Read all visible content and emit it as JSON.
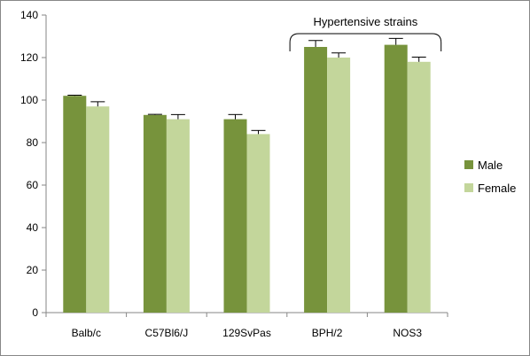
{
  "chart_data": {
    "type": "bar",
    "categories": [
      "Balb/c",
      "C57Bl6/J",
      "129SvPas",
      "BPH/2",
      "NOS3"
    ],
    "series": [
      {
        "name": "Male",
        "values": [
          102,
          93,
          91,
          125,
          126
        ],
        "errors": [
          0.3,
          0.3,
          2.2,
          3,
          3
        ],
        "color": "#77933c"
      },
      {
        "name": "Female",
        "values": [
          97,
          91,
          84,
          120,
          118
        ],
        "errors": [
          2.2,
          2.2,
          1.7,
          2.2,
          2.2
        ],
        "color": "#c3d69b"
      }
    ],
    "ylim": [
      0,
      140
    ],
    "yticks": [
      0,
      20,
      40,
      60,
      80,
      100,
      120,
      140
    ],
    "grid": false,
    "legend": "right",
    "annotation": {
      "text": "Hypertensive strains",
      "categories": [
        "BPH/2",
        "NOS3"
      ]
    }
  }
}
